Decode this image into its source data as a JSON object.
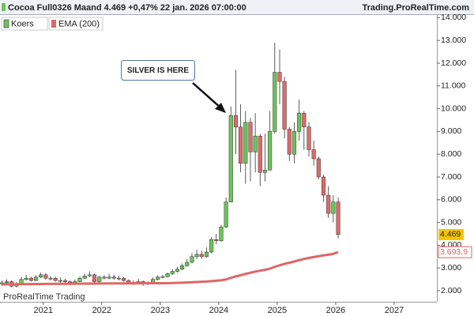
{
  "chart_data": {
    "type": "candlestick",
    "title": "Cocoa Full0326 Maand 4.469 +0,47% 22 jan. 2026 07:00:00",
    "source": "Trading.ProRealTime.com",
    "watermark": "ProRealTime Trading",
    "annotation": "SILVER IS HERE",
    "x": [
      2020.292,
      2020.375,
      2020.458,
      2020.542,
      2020.625,
      2020.708,
      2020.792,
      2020.875,
      2020.958,
      2021.042,
      2021.125,
      2021.208,
      2021.292,
      2021.375,
      2021.458,
      2021.542,
      2021.625,
      2021.708,
      2021.792,
      2021.875,
      2021.958,
      2022.042,
      2022.125,
      2022.208,
      2022.292,
      2022.375,
      2022.458,
      2022.542,
      2022.625,
      2022.708,
      2022.792,
      2022.875,
      2022.958,
      2023.042,
      2023.125,
      2023.208,
      2023.292,
      2023.375,
      2023.458,
      2023.542,
      2023.625,
      2023.708,
      2023.792,
      2023.875,
      2023.958,
      2024.042,
      2024.125,
      2024.208,
      2024.292,
      2024.375,
      2024.458,
      2024.542,
      2024.625,
      2024.708,
      2024.792,
      2024.875,
      2024.958,
      2025.042,
      2025.125,
      2025.208,
      2025.292,
      2025.375,
      2025.458,
      2025.542,
      2025.625,
      2025.708,
      2025.792,
      2025.875,
      2025.958,
      2026.042
    ],
    "xlim": [
      2020.26,
      2027.73
    ],
    "xticks": [
      2021,
      2022,
      2023,
      2024,
      2025,
      2026,
      2027
    ],
    "ylim": [
      1514,
      14153
    ],
    "yticks": [
      {
        "value": 2000,
        "label": "2.000"
      },
      {
        "value": 3000,
        "label": "3.000"
      },
      {
        "value": 4000,
        "label": "4.000"
      },
      {
        "value": 5000,
        "label": "5.000"
      },
      {
        "value": 6000,
        "label": "6.000"
      },
      {
        "value": 7000,
        "label": "7.000"
      },
      {
        "value": 8000,
        "label": "8.000"
      },
      {
        "value": 9000,
        "label": "9.000"
      },
      {
        "value": 10000,
        "label": "10.000"
      },
      {
        "value": 11000,
        "label": "11.000"
      },
      {
        "value": 12000,
        "label": "12.000"
      },
      {
        "value": 13000,
        "label": "13.000"
      },
      {
        "value": 14000,
        "label": "14.000"
      }
    ],
    "series": [
      {
        "name": "Koers",
        "color_up": "#6cc35a",
        "color_down": "#e06a6a",
        "open": [
          2300,
          2350,
          2400,
          2200,
          2300,
          2500,
          2550,
          2450,
          2600,
          2700,
          2550,
          2550,
          2450,
          2450,
          2400,
          2350,
          2400,
          2550,
          2650,
          2700,
          2400,
          2600,
          2550,
          2600,
          2550,
          2550,
          2450,
          2350,
          2350,
          2400,
          2300,
          2350,
          2500,
          2600,
          2620,
          2750,
          2850,
          2950,
          3100,
          3250,
          3500,
          3600,
          3500,
          3700,
          4250,
          4200,
          4800,
          5900,
          9700,
          9200,
          7600,
          9400,
          8100,
          8800,
          7200,
          7300,
          9000,
          11600,
          11200,
          9100,
          8000,
          9000,
          9800,
          9200,
          8200,
          7800,
          7000,
          6200,
          5400,
          5900
        ],
        "high": [
          2450,
          2500,
          2450,
          2380,
          2600,
          2700,
          2620,
          2680,
          2800,
          2780,
          2650,
          2620,
          2580,
          2520,
          2450,
          2500,
          2620,
          2750,
          2850,
          2750,
          2650,
          2680,
          2750,
          2700,
          2650,
          2600,
          2500,
          2450,
          2520,
          2450,
          2420,
          2580,
          2680,
          2700,
          2800,
          2950,
          3050,
          3200,
          3400,
          3650,
          3800,
          3750,
          3900,
          4350,
          4500,
          4900,
          6100,
          10100,
          11700,
          10200,
          9900,
          9600,
          9800,
          8900,
          8900,
          9900,
          12900,
          12600,
          11400,
          9200,
          9400,
          10400,
          9900,
          9400,
          8600,
          7900,
          7100,
          6600,
          6200,
          6100
        ],
        "low": [
          2220,
          2280,
          2150,
          2150,
          2280,
          2450,
          2400,
          2420,
          2550,
          2480,
          2450,
          2400,
          2350,
          2320,
          2280,
          2300,
          2380,
          2500,
          2600,
          2350,
          2350,
          2500,
          2500,
          2480,
          2450,
          2400,
          2300,
          2250,
          2300,
          2220,
          2250,
          2320,
          2450,
          2550,
          2580,
          2700,
          2800,
          2900,
          3050,
          3200,
          3400,
          3400,
          3450,
          3650,
          4050,
          4150,
          4750,
          5900,
          8000,
          7200,
          6700,
          6800,
          7200,
          6600,
          6800,
          7300,
          8900,
          10200,
          8700,
          7700,
          7600,
          8600,
          8200,
          7900,
          7500,
          6900,
          5900,
          5200,
          5000,
          4300
        ],
        "close": [
          2350,
          2400,
          2200,
          2300,
          2500,
          2550,
          2450,
          2600,
          2700,
          2550,
          2550,
          2450,
          2450,
          2400,
          2350,
          2400,
          2550,
          2650,
          2700,
          2400,
          2600,
          2550,
          2600,
          2550,
          2550,
          2450,
          2350,
          2350,
          2400,
          2300,
          2350,
          2500,
          2600,
          2620,
          2750,
          2850,
          2950,
          3100,
          3250,
          3500,
          3600,
          3500,
          3700,
          4250,
          4200,
          4800,
          5900,
          9700,
          9200,
          7600,
          9400,
          8100,
          8800,
          7200,
          7300,
          9000,
          11600,
          11200,
          9100,
          8000,
          9000,
          9800,
          9200,
          8200,
          7800,
          7000,
          6200,
          5400,
          5900,
          4469
        ],
        "value_label": {
          "value": 4469,
          "label": "4.469"
        }
      },
      {
        "name": "EMA (200)",
        "color": "#e06666",
        "values": [
          2280,
          2282,
          2284,
          2285,
          2287,
          2290,
          2292,
          2294,
          2297,
          2299,
          2301,
          2303,
          2304,
          2305,
          2306,
          2307,
          2309,
          2311,
          2313,
          2314,
          2316,
          2318,
          2320,
          2321,
          2322,
          2323,
          2324,
          2325,
          2326,
          2326,
          2327,
          2328,
          2330,
          2331,
          2335,
          2340,
          2346,
          2353,
          2361,
          2372,
          2383,
          2394,
          2405,
          2422,
          2440,
          2462,
          2495,
          2565,
          2630,
          2680,
          2740,
          2790,
          2840,
          2880,
          2920,
          2970,
          3050,
          3120,
          3180,
          3230,
          3285,
          3345,
          3395,
          3440,
          3480,
          3520,
          3555,
          3585,
          3620,
          3693.9
        ],
        "value_label": {
          "value": 3693.9,
          "label": "3.693,9"
        }
      }
    ]
  }
}
